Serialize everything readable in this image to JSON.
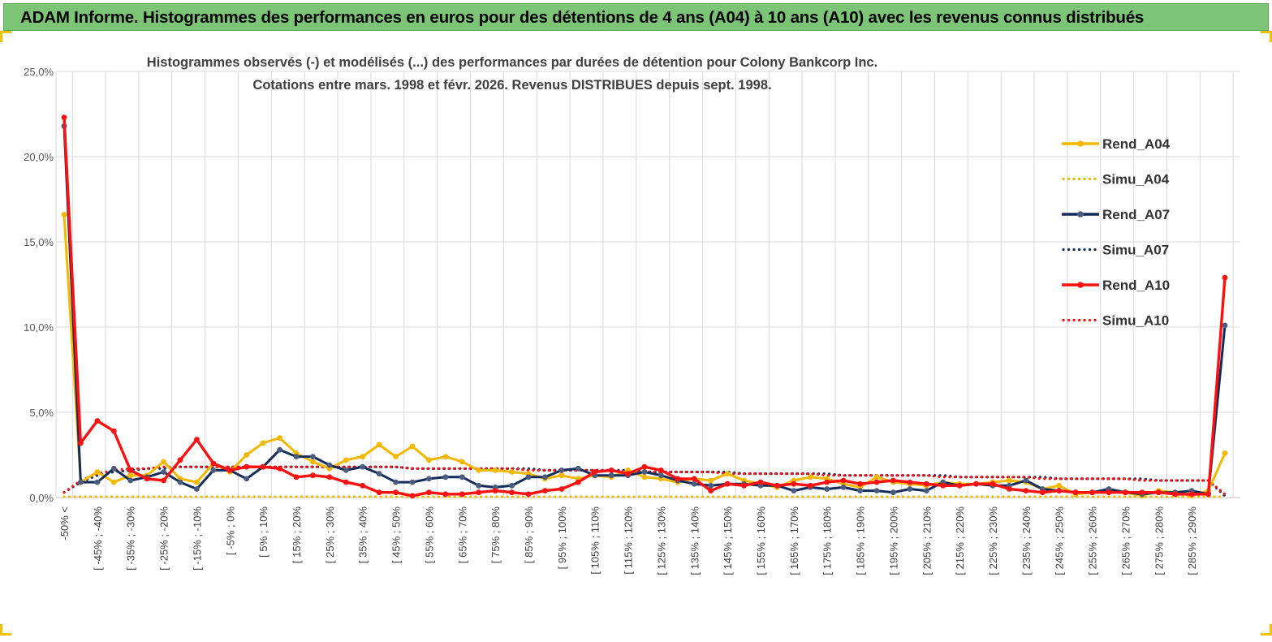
{
  "header": {
    "title": "ADAM Informe. Histogrammes des performances en euros pour des détentions de 4 ans (A04) à 10 ans (A10) avec les revenus connus distribués"
  },
  "colors": {
    "banner": "#7cc576",
    "rend_a04": "#f5b800",
    "rend_a07": "#132c5b",
    "rend_a10": "#ff1010",
    "grid": "#d9d9d9"
  },
  "chart_data": {
    "type": "line",
    "title": "Histogrammes observés (-) et modélisés (...) des performances par durées de détention pour Colony Bankcorp Inc.",
    "subtitle": "Cotations entre mars. 1998 et févr. 2026. Revenus DISTRIBUES depuis sept. 1998.",
    "xlabel": "",
    "ylabel": "",
    "ylim": [
      0,
      25
    ],
    "yticks": [
      "0,0%",
      "5,0%",
      "10,0%",
      "15,0%",
      "20,0%",
      "25,0%"
    ],
    "x_tick_labels": [
      "-50% <",
      "[ -45% ; -40%",
      "[ -35% ; -30%",
      "[ -25% ; -20%",
      "[ -15% ; -10%",
      "[ -5% ; 0%",
      "[ 5% ; 10%",
      "[ 15% ; 20%",
      "[ 25% ; 30%",
      "[ 35% ; 40%",
      "[ 45% ; 50%",
      "[ 55% ; 60%",
      "[ 65% ; 70%",
      "[ 75% ; 80%",
      "[ 85% ; 90%",
      "[ 95% ; 100%",
      "[ 105% ; 110%",
      "[ 115% ; 120%",
      "[ 125% ; 130%",
      "[ 135% ; 140%",
      "[ 145% ; 150%",
      "[ 155% ; 160%",
      "[ 165% ; 170%",
      "[ 175% ; 180%",
      "[ 185% ; 190%",
      "[ 195% ; 200%",
      "[ 205% ; 210%",
      "[ 215% ; 220%",
      "[ 225% ; 230%",
      "[ 235% ; 240%",
      "[ 245% ; 250%",
      "[ 255% ; 260%",
      "[ 265% ; 270%",
      "[ 275% ; 280%",
      "[ 285% ; 290%"
    ],
    "n_categories": 71,
    "legend_position": "right",
    "series": [
      {
        "name": "Rend_A04",
        "style": "solid",
        "values": [
          16.6,
          0.9,
          1.5,
          0.9,
          1.3,
          1.3,
          2.1,
          1.1,
          0.9,
          2.0,
          1.5,
          2.5,
          3.2,
          3.5,
          2.6,
          2.1,
          1.7,
          2.2,
          2.4,
          3.1,
          2.4,
          3.0,
          2.2,
          2.4,
          2.1,
          1.6,
          1.6,
          1.5,
          1.4,
          1.1,
          1.3,
          1.1,
          1.3,
          1.2,
          1.6,
          1.2,
          1.1,
          0.9,
          1.1,
          1.0,
          1.4,
          1.0,
          0.8,
          0.6,
          1.0,
          1.2,
          1.1,
          0.8,
          0.6,
          1.2,
          0.9,
          0.8,
          0.7,
          0.9,
          0.8,
          0.8,
          0.9,
          1.0,
          0.9,
          0.5,
          0.7,
          0.2,
          0.3,
          0.4,
          0.3,
          0.1,
          0.4,
          0.3,
          0.1,
          0.4,
          2.6
        ]
      },
      {
        "name": "Simu_A04",
        "style": "dotted",
        "values": [
          0.05,
          0.05,
          0.05,
          0.05,
          0.05,
          0.05,
          0.05,
          0.05,
          0.05,
          0.05,
          0.05,
          0.05,
          0.05,
          0.05,
          0.05,
          0.05,
          0.05,
          0.05,
          0.05,
          0.05,
          0.05,
          0.05,
          0.05,
          0.05,
          0.05,
          0.05,
          0.05,
          0.05,
          0.05,
          0.05,
          0.05,
          0.05,
          0.05,
          0.05,
          0.05,
          0.05,
          0.05,
          0.05,
          0.05,
          0.05,
          0.05,
          0.05,
          0.05,
          0.05,
          0.05,
          0.05,
          0.05,
          0.05,
          0.05,
          0.05,
          0.05,
          0.05,
          0.05,
          0.05,
          0.05,
          0.05,
          0.05,
          0.05,
          0.05,
          0.05,
          0.05,
          0.05,
          0.05,
          0.05,
          0.05,
          0.05,
          0.05,
          0.05,
          0.05,
          0.05,
          0.05
        ]
      },
      {
        "name": "Rend_A07",
        "style": "solid",
        "values": [
          21.8,
          0.9,
          0.9,
          1.7,
          1.0,
          1.2,
          1.5,
          0.9,
          0.5,
          1.6,
          1.6,
          1.1,
          1.8,
          2.8,
          2.4,
          2.4,
          1.9,
          1.6,
          1.8,
          1.4,
          0.9,
          0.9,
          1.1,
          1.2,
          1.2,
          0.7,
          0.6,
          0.7,
          1.2,
          1.2,
          1.6,
          1.7,
          1.3,
          1.3,
          1.3,
          1.5,
          1.3,
          1.0,
          0.8,
          0.7,
          0.8,
          0.8,
          0.7,
          0.7,
          0.4,
          0.6,
          0.5,
          0.6,
          0.4,
          0.4,
          0.3,
          0.5,
          0.4,
          0.9,
          0.7,
          0.8,
          0.7,
          0.7,
          1.0,
          0.5,
          0.4,
          0.3,
          0.3,
          0.5,
          0.3,
          0.2,
          0.3,
          0.3,
          0.4,
          0.2,
          10.1
        ]
      },
      {
        "name": "Simu_A07",
        "style": "dotted",
        "values": [
          0.3,
          0.9,
          1.3,
          1.5,
          1.6,
          1.7,
          1.7,
          1.8,
          1.8,
          1.8,
          1.8,
          1.8,
          1.8,
          1.8,
          1.8,
          1.8,
          1.8,
          1.8,
          1.8,
          1.8,
          1.8,
          1.7,
          1.7,
          1.7,
          1.7,
          1.7,
          1.7,
          1.7,
          1.7,
          1.6,
          1.6,
          1.6,
          1.6,
          1.6,
          1.6,
          1.5,
          1.5,
          1.5,
          1.5,
          1.5,
          1.5,
          1.4,
          1.4,
          1.4,
          1.4,
          1.4,
          1.4,
          1.3,
          1.3,
          1.3,
          1.3,
          1.3,
          1.3,
          1.3,
          1.2,
          1.2,
          1.2,
          1.2,
          1.2,
          1.2,
          1.1,
          1.1,
          1.1,
          1.1,
          1.1,
          1.1,
          1.0,
          1.0,
          1.0,
          1.0,
          0.1
        ]
      },
      {
        "name": "Rend_A10",
        "style": "solid",
        "values": [
          22.3,
          3.2,
          4.5,
          3.9,
          1.6,
          1.1,
          1.0,
          2.2,
          3.4,
          2.0,
          1.6,
          1.8,
          1.8,
          1.7,
          1.2,
          1.3,
          1.2,
          0.9,
          0.7,
          0.3,
          0.3,
          0.1,
          0.3,
          0.2,
          0.2,
          0.3,
          0.4,
          0.3,
          0.2,
          0.4,
          0.5,
          0.9,
          1.5,
          1.6,
          1.4,
          1.8,
          1.6,
          1.1,
          1.1,
          0.4,
          0.8,
          0.7,
          0.9,
          0.7,
          0.8,
          0.7,
          0.9,
          1.0,
          0.8,
          0.9,
          1.0,
          0.9,
          0.8,
          0.7,
          0.7,
          0.8,
          0.8,
          0.5,
          0.4,
          0.3,
          0.4,
          0.3,
          0.3,
          0.3,
          0.3,
          0.3,
          0.3,
          0.2,
          0.2,
          0.2,
          12.9
        ]
      },
      {
        "name": "Simu_A10",
        "style": "dotted",
        "values": [
          0.3,
          1.0,
          1.4,
          1.6,
          1.7,
          1.7,
          1.8,
          1.8,
          1.8,
          1.8,
          1.8,
          1.8,
          1.8,
          1.8,
          1.8,
          1.8,
          1.8,
          1.8,
          1.8,
          1.8,
          1.8,
          1.7,
          1.7,
          1.7,
          1.7,
          1.7,
          1.7,
          1.7,
          1.6,
          1.6,
          1.6,
          1.6,
          1.6,
          1.6,
          1.5,
          1.5,
          1.5,
          1.5,
          1.5,
          1.5,
          1.4,
          1.4,
          1.4,
          1.4,
          1.4,
          1.4,
          1.3,
          1.3,
          1.3,
          1.3,
          1.3,
          1.3,
          1.3,
          1.2,
          1.2,
          1.2,
          1.2,
          1.2,
          1.2,
          1.1,
          1.1,
          1.1,
          1.1,
          1.1,
          1.1,
          1.0,
          1.0,
          1.0,
          1.0,
          1.0,
          0.2
        ]
      }
    ]
  }
}
